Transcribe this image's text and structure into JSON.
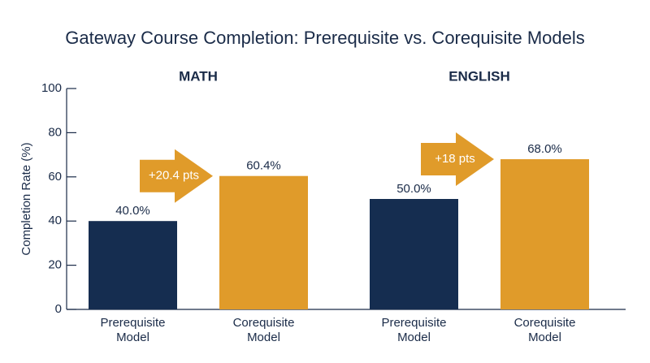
{
  "chart_data": {
    "type": "bar",
    "title": "Gateway Course Completion: Prerequisite vs. Corequisite Models",
    "y_label": "Completion Rate (%)",
    "ylim": [
      0,
      100
    ],
    "yticks": [
      0,
      20,
      40,
      60,
      80,
      100
    ],
    "colors": [
      "#152d50",
      "#e09b2a"
    ],
    "groups": [
      {
        "name": "MATH",
        "categories": [
          "Prerequisite Model",
          "Corequisite Model"
        ],
        "values": [
          40.0,
          60.4
        ],
        "value_labels": [
          "40.0%",
          "60.4%"
        ],
        "annotation": "+20.4 pts"
      },
      {
        "name": "ENGLISH",
        "categories": [
          "Prerequisite Model",
          "Corequisite Model"
        ],
        "values": [
          50.0,
          68.0
        ],
        "value_labels": [
          "50.0%",
          "68.0%"
        ],
        "annotation": "+18 pts"
      }
    ]
  }
}
